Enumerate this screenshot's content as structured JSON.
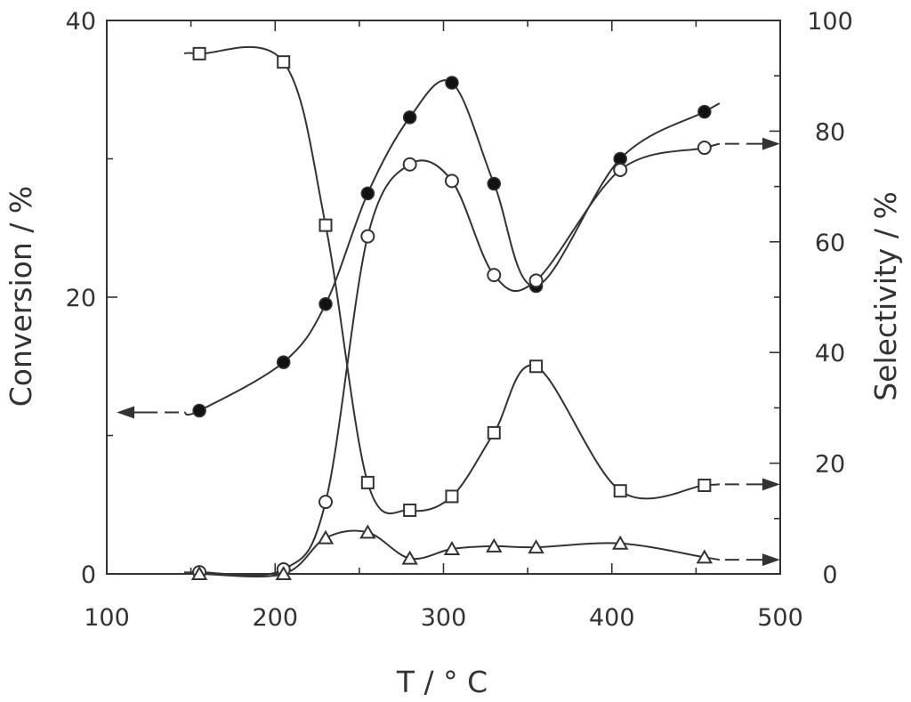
{
  "chart_data": {
    "type": "line",
    "title": "",
    "xlabel": "T / °  C",
    "ylabel_left": "Conversion / %",
    "ylabel_right": "Selectivity / %",
    "xlim": [
      100,
      500
    ],
    "ylim_left": [
      0,
      40
    ],
    "ylim_right": [
      0,
      100
    ],
    "xticks": [
      "100",
      "200",
      "300",
      "400",
      "500"
    ],
    "yticks_left": [
      "0",
      "20",
      "40"
    ],
    "yticks_right": [
      "0",
      "20",
      "40",
      "60",
      "80",
      "100"
    ],
    "grid": false,
    "legend": "none",
    "series": [
      {
        "marker": "filled-circle",
        "axis": "left",
        "x": [
          155,
          205,
          230,
          255,
          280,
          305,
          330,
          355,
          405,
          455
        ],
        "y": [
          11.8,
          15.3,
          19.5,
          27.5,
          33.0,
          35.5,
          28.2,
          20.8,
          30.0,
          33.4
        ]
      },
      {
        "marker": "open-circle",
        "axis": "right",
        "x": [
          155,
          205,
          230,
          255,
          280,
          305,
          330,
          355,
          405,
          455
        ],
        "y": [
          0.3,
          0.8,
          13.0,
          61.0,
          74.0,
          71.0,
          54.0,
          53.0,
          73.0,
          77.0
        ]
      },
      {
        "marker": "open-square",
        "axis": "right",
        "x": [
          155,
          205,
          230,
          255,
          280,
          305,
          330,
          355,
          405,
          455
        ],
        "y": [
          94.0,
          92.5,
          63.0,
          16.5,
          11.5,
          14.0,
          25.5,
          37.5,
          15.0,
          16.0
        ]
      },
      {
        "marker": "open-triangle",
        "axis": "right",
        "x": [
          155,
          205,
          230,
          255,
          280,
          305,
          330,
          355,
          405,
          455
        ],
        "y": [
          0.0,
          0.0,
          6.5,
          7.5,
          2.8,
          4.5,
          5.0,
          4.8,
          5.5,
          3.0
        ]
      }
    ],
    "axis_arrows": [
      {
        "series": "filled-circle",
        "points_to": "left"
      },
      {
        "series": "open-circle",
        "points_to": "right"
      },
      {
        "series": "open-square",
        "points_to": "right"
      },
      {
        "series": "open-triangle",
        "points_to": "right"
      }
    ],
    "colors": {
      "line": "#333333",
      "axis": "#333333",
      "marker_fill_open": "#ffffff",
      "marker_fill_filled": "#111111"
    }
  }
}
